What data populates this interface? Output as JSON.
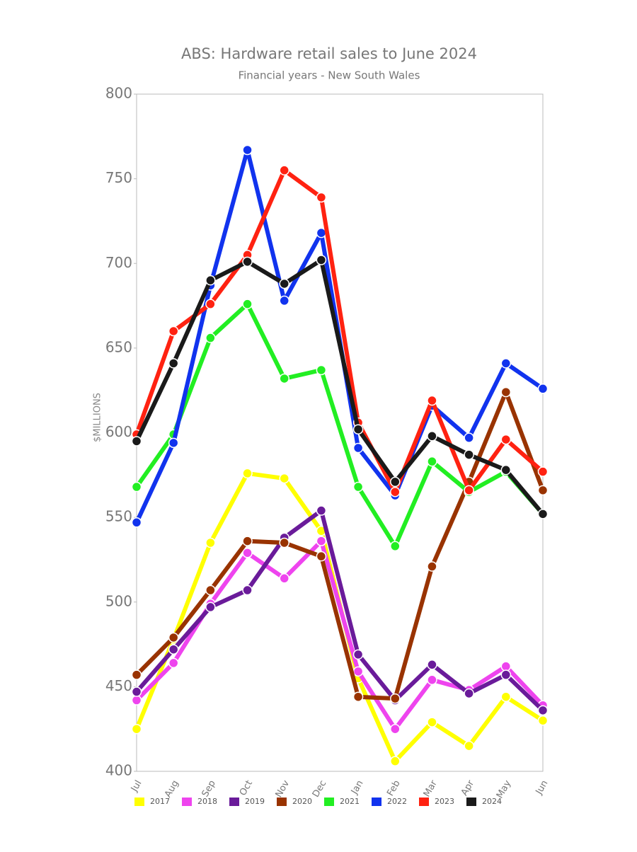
{
  "chart_data": {
    "type": "line",
    "title": "ABS: Hardware retail sales to June 2024",
    "subtitle": "Financial years - New South Wales",
    "y_label": "$MILLIONS",
    "categories": [
      "Jul",
      "Aug",
      "Sep",
      "Oct",
      "Nov",
      "Dec",
      "Jan",
      "Feb",
      "Mar",
      "Apr",
      "May",
      "Jun"
    ],
    "ylim": [
      400,
      800
    ],
    "yticks": [
      400,
      450,
      500,
      550,
      600,
      650,
      700,
      750,
      800
    ],
    "legend": "bottom",
    "series": [
      {
        "name": "2017",
        "color": "#ffff00",
        "values": [
          425,
          478,
          535,
          576,
          573,
          542,
          455,
          406,
          429,
          415,
          444,
          430
        ]
      },
      {
        "name": "2018",
        "color": "#ee44ee",
        "values": [
          442,
          464,
          499,
          529,
          514,
          536,
          459,
          425,
          454,
          448,
          462,
          439
        ]
      },
      {
        "name": "2019",
        "color": "#6a1b9a",
        "values": [
          447,
          472,
          497,
          507,
          538,
          554,
          469,
          442,
          463,
          446,
          457,
          436
        ]
      },
      {
        "name": "2020",
        "color": "#993300",
        "values": [
          457,
          479,
          507,
          536,
          535,
          527,
          444,
          443,
          521,
          571,
          624,
          566
        ]
      },
      {
        "name": "2021",
        "color": "#22ee22",
        "values": [
          568,
          599,
          656,
          676,
          632,
          637,
          568,
          533,
          583,
          565,
          577,
          552
        ]
      },
      {
        "name": "2022",
        "color": "#1133ee",
        "values": [
          547,
          594,
          687,
          767,
          678,
          718,
          591,
          563,
          616,
          597,
          641,
          626
        ]
      },
      {
        "name": "2023",
        "color": "#ff2211",
        "values": [
          599,
          660,
          676,
          705,
          755,
          739,
          606,
          565,
          619,
          566,
          596,
          577
        ]
      },
      {
        "name": "2024",
        "color": "#1a1a1a",
        "values": [
          595,
          641,
          690,
          701,
          688,
          702,
          602,
          571,
          598,
          587,
          578,
          552
        ]
      }
    ]
  }
}
